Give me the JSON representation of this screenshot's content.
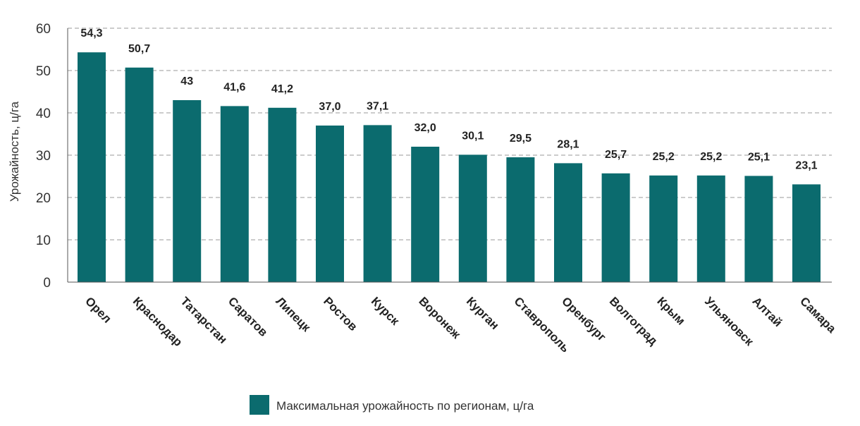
{
  "chart_data": {
    "type": "bar",
    "categories": [
      "Орел",
      "Краснодар",
      "Татарстан",
      "Саратов",
      "Липецк",
      "Ростов",
      "Курск",
      "Воронеж",
      "Курган",
      "Ставрополь",
      "Оренбург",
      "Волгоград",
      "Крым",
      "Ульяновск",
      "Алтай",
      "Самара"
    ],
    "series": [
      {
        "name": "Максимальная урожайность по регионам, ц/га",
        "values": [
          54.3,
          50.7,
          43,
          41.6,
          41.2,
          37.0,
          37.1,
          32.0,
          30.1,
          29.5,
          28.1,
          25.7,
          25.2,
          25.2,
          25.1,
          23.1
        ],
        "labels": [
          "54,3",
          "50,7",
          "43",
          "41,6",
          "41,2",
          "37,0",
          "37,1",
          "32,0",
          "30,1",
          "29,5",
          "28,1",
          "25,7",
          "25,2",
          "25,2",
          "25,1",
          "23,1"
        ],
        "color": "#0b6b6e"
      }
    ],
    "ylabel": "Урожайность, ц/га",
    "xlabel": "",
    "ylim": [
      0,
      60
    ],
    "yticks": [
      0,
      10,
      20,
      30,
      40,
      50,
      60
    ],
    "grid": true,
    "legend": "bottom-center"
  }
}
